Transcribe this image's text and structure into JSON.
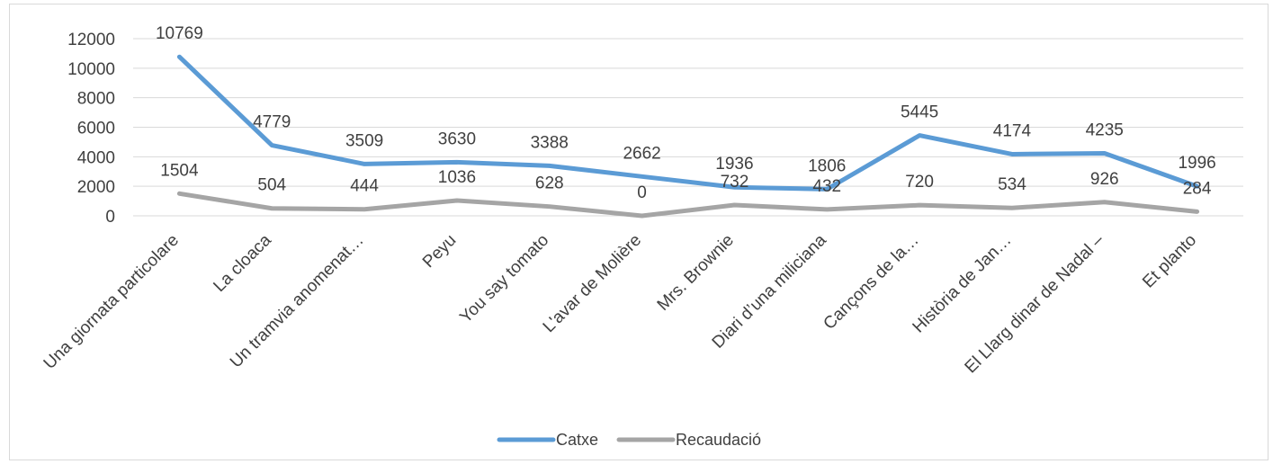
{
  "chart_data": {
    "type": "line",
    "title": "",
    "xlabel": "",
    "ylabel": "",
    "ylim": [
      0,
      12000
    ],
    "ytick_step": 2000,
    "grid": true,
    "legend_position": "bottom",
    "categories": [
      "Una giornata particolare",
      "La cloaca",
      "Un tramvia anomenat…",
      "Peyu",
      "You say tomato",
      "L'avar de Molière",
      "Mrs. Brownie",
      "Diari d’una miliciana",
      "Cançons de la…",
      "Història de Jan…",
      "El Llarg dinar de Nadal –",
      "Et planto"
    ],
    "series": [
      {
        "name": "Catxe",
        "color": "#5b9bd5",
        "values": [
          10769,
          4779,
          3509,
          3630,
          3388,
          2662,
          1936,
          1806,
          5445,
          4174,
          4235,
          1996
        ]
      },
      {
        "name": "Recaudació",
        "color": "#a5a5a5",
        "values": [
          1504,
          504,
          444,
          1036,
          628,
          0,
          732,
          432,
          720,
          534,
          926,
          284
        ]
      }
    ]
  }
}
